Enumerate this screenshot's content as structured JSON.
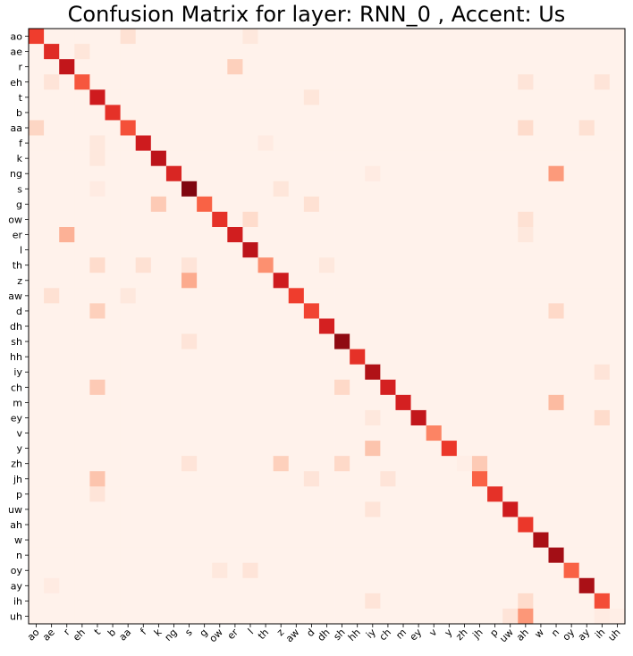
{
  "chart_data": {
    "type": "heatmap",
    "title": "Confusion Matrix for layer: RNN_0 , Accent: Us",
    "xlabel": "",
    "ylabel": "",
    "x_labels": [
      "ao",
      "ae",
      "r",
      "eh",
      "t",
      "b",
      "aa",
      "f",
      "k",
      "ng",
      "s",
      "g",
      "ow",
      "er",
      "l",
      "th",
      "z",
      "aw",
      "d",
      "dh",
      "sh",
      "hh",
      "iy",
      "ch",
      "m",
      "ey",
      "v",
      "y",
      "zh",
      "jh",
      "p",
      "uw",
      "ah",
      "w",
      "n",
      "oy",
      "ay",
      "ih",
      "uh"
    ],
    "y_labels": [
      "ao",
      "ae",
      "r",
      "eh",
      "t",
      "b",
      "aa",
      "f",
      "k",
      "ng",
      "s",
      "g",
      "ow",
      "er",
      "l",
      "th",
      "z",
      "aw",
      "d",
      "dh",
      "sh",
      "hh",
      "iy",
      "ch",
      "m",
      "ey",
      "v",
      "y",
      "zh",
      "jh",
      "p",
      "uw",
      "ah",
      "w",
      "n",
      "oy",
      "ay",
      "ih",
      "uh"
    ],
    "colormap": "Reds",
    "diagonal_values": [
      0.62,
      0.68,
      0.78,
      0.55,
      0.74,
      0.66,
      0.57,
      0.74,
      0.8,
      0.7,
      0.95,
      0.52,
      0.66,
      0.73,
      0.8,
      0.38,
      0.74,
      0.62,
      0.6,
      0.72,
      0.92,
      0.66,
      0.84,
      0.72,
      0.72,
      0.78,
      0.42,
      0.64,
      0.04,
      0.52,
      0.66,
      0.74,
      0.64,
      0.86,
      0.88,
      0.52,
      0.86,
      0.58,
      0.04
    ],
    "off_diagonal": [
      {
        "row": "ao",
        "col": "aa",
        "value": 0.12
      },
      {
        "row": "ao",
        "col": "l",
        "value": 0.08
      },
      {
        "row": "ae",
        "col": "eh",
        "value": 0.09
      },
      {
        "row": "r",
        "col": "er",
        "value": 0.18
      },
      {
        "row": "eh",
        "col": "ae",
        "value": 0.1
      },
      {
        "row": "eh",
        "col": "ah",
        "value": 0.1
      },
      {
        "row": "eh",
        "col": "ih",
        "value": 0.1
      },
      {
        "row": "t",
        "col": "d",
        "value": 0.09
      },
      {
        "row": "aa",
        "col": "ao",
        "value": 0.16
      },
      {
        "row": "aa",
        "col": "ah",
        "value": 0.14
      },
      {
        "row": "aa",
        "col": "ay",
        "value": 0.12
      },
      {
        "row": "f",
        "col": "t",
        "value": 0.08
      },
      {
        "row": "f",
        "col": "th",
        "value": 0.06
      },
      {
        "row": "k",
        "col": "t",
        "value": 0.08
      },
      {
        "row": "ng",
        "col": "n",
        "value": 0.35
      },
      {
        "row": "ng",
        "col": "iy",
        "value": 0.06
      },
      {
        "row": "s",
        "col": "z",
        "value": 0.09
      },
      {
        "row": "s",
        "col": "t",
        "value": 0.06
      },
      {
        "row": "g",
        "col": "k",
        "value": 0.2
      },
      {
        "row": "g",
        "col": "d",
        "value": 0.12
      },
      {
        "row": "ow",
        "col": "l",
        "value": 0.14
      },
      {
        "row": "ow",
        "col": "ah",
        "value": 0.12
      },
      {
        "row": "er",
        "col": "r",
        "value": 0.28
      },
      {
        "row": "er",
        "col": "ah",
        "value": 0.08
      },
      {
        "row": "th",
        "col": "t",
        "value": 0.14
      },
      {
        "row": "th",
        "col": "f",
        "value": 0.12
      },
      {
        "row": "th",
        "col": "s",
        "value": 0.1
      },
      {
        "row": "th",
        "col": "dh",
        "value": 0.08
      },
      {
        "row": "z",
        "col": "s",
        "value": 0.3
      },
      {
        "row": "aw",
        "col": "ae",
        "value": 0.12
      },
      {
        "row": "aw",
        "col": "aa",
        "value": 0.08
      },
      {
        "row": "d",
        "col": "t",
        "value": 0.18
      },
      {
        "row": "d",
        "col": "n",
        "value": 0.15
      },
      {
        "row": "sh",
        "col": "s",
        "value": 0.1
      },
      {
        "row": "iy",
        "col": "ih",
        "value": 0.1
      },
      {
        "row": "ch",
        "col": "t",
        "value": 0.2
      },
      {
        "row": "ch",
        "col": "sh",
        "value": 0.15
      },
      {
        "row": "m",
        "col": "n",
        "value": 0.25
      },
      {
        "row": "ey",
        "col": "ih",
        "value": 0.14
      },
      {
        "row": "ey",
        "col": "iy",
        "value": 0.08
      },
      {
        "row": "y",
        "col": "iy",
        "value": 0.22
      },
      {
        "row": "zh",
        "col": "z",
        "value": 0.18
      },
      {
        "row": "zh",
        "col": "sh",
        "value": 0.15
      },
      {
        "row": "zh",
        "col": "jh",
        "value": 0.2
      },
      {
        "row": "zh",
        "col": "s",
        "value": 0.1
      },
      {
        "row": "jh",
        "col": "t",
        "value": 0.22
      },
      {
        "row": "jh",
        "col": "ch",
        "value": 0.1
      },
      {
        "row": "jh",
        "col": "d",
        "value": 0.1
      },
      {
        "row": "p",
        "col": "t",
        "value": 0.1
      },
      {
        "row": "uw",
        "col": "iy",
        "value": 0.1
      },
      {
        "row": "ay",
        "col": "ae",
        "value": 0.06
      },
      {
        "row": "ih",
        "col": "ah",
        "value": 0.14
      },
      {
        "row": "ih",
        "col": "iy",
        "value": 0.1
      },
      {
        "row": "oy",
        "col": "ow",
        "value": 0.08
      },
      {
        "row": "oy",
        "col": "l",
        "value": 0.1
      },
      {
        "row": "uh",
        "col": "ah",
        "value": 0.36
      },
      {
        "row": "uh",
        "col": "uw",
        "value": 0.1
      },
      {
        "row": "uh",
        "col": "ih",
        "value": 0.06
      }
    ],
    "background_value": 0.02,
    "grid": false
  }
}
